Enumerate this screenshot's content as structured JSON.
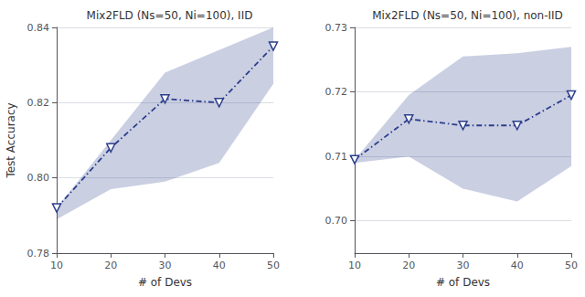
{
  "chart_data": [
    {
      "type": "line",
      "title": "Mix2FLD (Ns=50, Ni=100), IID",
      "xlabel": "# of Devs",
      "ylabel": "Test Accuracy",
      "x": [
        10,
        20,
        30,
        40,
        50
      ],
      "xlim": [
        10,
        50
      ],
      "xticks": [
        10,
        20,
        30,
        40,
        50
      ],
      "ylim": [
        0.78,
        0.84
      ],
      "yticks": [
        0.78,
        {
          "value": 0.8,
          "label": "0.80"
        },
        0.82,
        0.84
      ],
      "grid": true,
      "series": [
        {
          "color": "#2c3e8c",
          "marker": "triangle-down",
          "line_style": "dashdot",
          "values": [
            0.792,
            0.808,
            0.821,
            0.82,
            0.835
          ],
          "lower": [
            0.789,
            0.797,
            0.799,
            0.804,
            0.825
          ],
          "upper": [
            0.792,
            0.81,
            0.828,
            0.834,
            0.84
          ]
        }
      ]
    },
    {
      "type": "line",
      "title": "Mix2FLD (Ns=50, Ni=100), non-IID",
      "xlabel": "# of Devs",
      "x": [
        10,
        20,
        30,
        40,
        50
      ],
      "xlim": [
        10,
        50
      ],
      "xticks": [
        10,
        20,
        30,
        40,
        50
      ],
      "ylim": [
        0.695,
        0.73
      ],
      "yticks": [
        {
          "value": 0.7,
          "label": "0.70"
        },
        0.71,
        0.72,
        0.73
      ],
      "grid": true,
      "series": [
        {
          "color": "#2c3e8c",
          "marker": "triangle-down",
          "line_style": "dashdot",
          "values": [
            0.7095,
            0.7158,
            0.7148,
            0.7148,
            0.7195
          ],
          "lower": [
            0.709,
            0.71,
            0.705,
            0.703,
            0.7085
          ],
          "upper": [
            0.7095,
            0.7195,
            0.7255,
            0.726,
            0.727
          ]
        }
      ]
    }
  ]
}
